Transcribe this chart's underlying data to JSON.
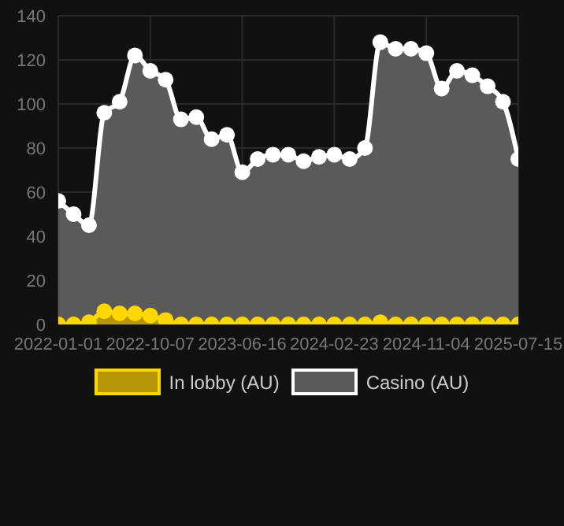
{
  "chart_data": {
    "type": "area",
    "categories": [
      "2022-01-01",
      null,
      null,
      null,
      null,
      null,
      "2022-10-07",
      null,
      null,
      null,
      null,
      null,
      "2023-06-16",
      null,
      null,
      null,
      null,
      null,
      "2024-02-23",
      null,
      null,
      null,
      null,
      null,
      "2024-11-04",
      null,
      null,
      null,
      null,
      null,
      "2025-07-15"
    ],
    "series": [
      {
        "name": "In lobby (AU)",
        "color": "#ffd700",
        "values": [
          0,
          0,
          1,
          6,
          5,
          5,
          4,
          2,
          0,
          0,
          0,
          0,
          0,
          0,
          0,
          0,
          0,
          0,
          0,
          0,
          0,
          1,
          0,
          0,
          0,
          0,
          0,
          0,
          0,
          0,
          0
        ]
      },
      {
        "name": "Casino (AU)",
        "color": "#ffffff",
        "values": [
          56,
          50,
          45,
          96,
          101,
          122,
          115,
          111,
          93,
          94,
          84,
          86,
          69,
          75,
          77,
          77,
          74,
          76,
          77,
          75,
          80,
          128,
          125,
          125,
          123,
          107,
          115,
          113,
          108,
          101,
          75
        ]
      }
    ],
    "ylim": [
      0,
      140
    ],
    "yticks": [
      0,
      20,
      40,
      60,
      80,
      100,
      120,
      140
    ],
    "grid": true,
    "legend": "bottom",
    "marker": "circle"
  }
}
